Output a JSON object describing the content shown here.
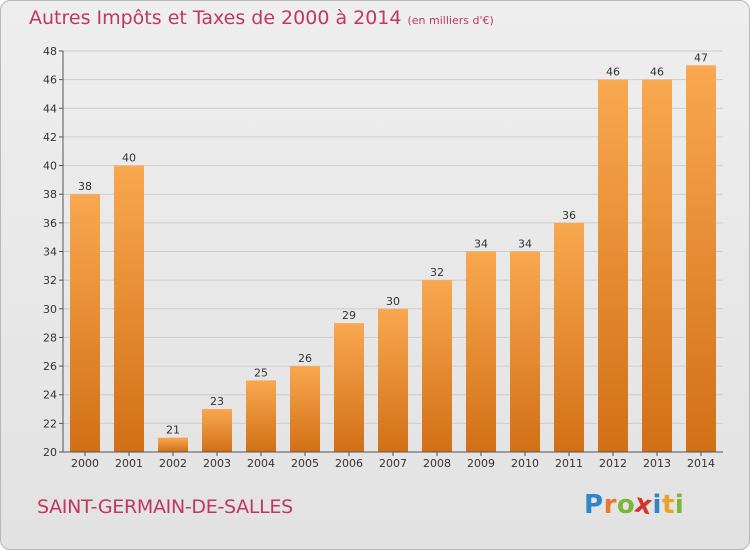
{
  "header": {
    "title": "Autres Impôts et Taxes de 2000 à 2014",
    "unit": "(en milliers d'€)"
  },
  "footer": {
    "commune": "SAINT-GERMAIN-DE-SALLES"
  },
  "logo": {
    "letters": [
      "P",
      "r",
      "o",
      "x",
      "i",
      "t",
      "i"
    ],
    "colors": [
      "#2e86c8",
      "#e8782a",
      "#7bb63a",
      "#d4332f",
      "#2e86c8",
      "#e8a22a",
      "#7bb63a"
    ]
  },
  "colors": {
    "bar_light": "#f8a850",
    "bar_dark": "#d26f16",
    "axis_text": "#333333",
    "grid": "#cccccc"
  },
  "chart_data": {
    "type": "bar",
    "categories": [
      "2000",
      "2001",
      "2002",
      "2003",
      "2004",
      "2005",
      "2006",
      "2007",
      "2008",
      "2009",
      "2010",
      "2011",
      "2012",
      "2013",
      "2014"
    ],
    "values": [
      38,
      40,
      21,
      23,
      25,
      26,
      29,
      30,
      32,
      34,
      34,
      36,
      46,
      46,
      47
    ],
    "title": "Autres Impôts et Taxes de 2000 à 2014",
    "xlabel": "",
    "ylabel": "",
    "ylim": [
      20,
      48
    ],
    "yticks": [
      20,
      22,
      24,
      26,
      28,
      30,
      32,
      34,
      36,
      38,
      40,
      42,
      44,
      46,
      48
    ],
    "grid": true
  }
}
